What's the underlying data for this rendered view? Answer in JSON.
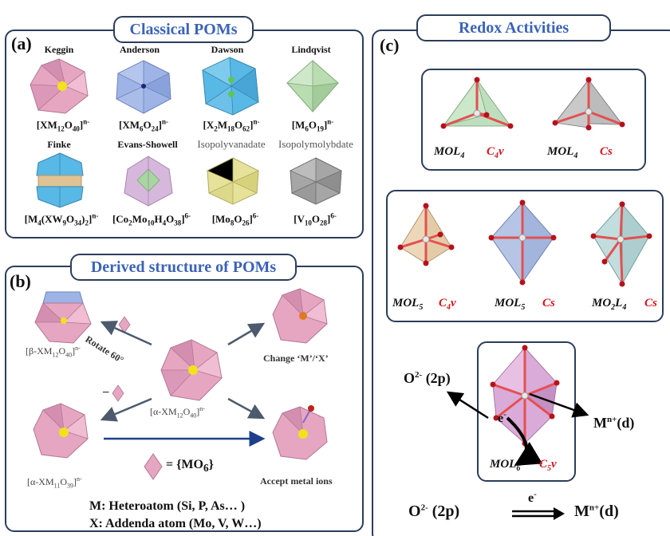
{
  "panel_a": {
    "label": "(a)",
    "title": "Classical POMs",
    "structures": [
      {
        "name": "Keggin",
        "formula_html": "[XM<sub>12</sub>O<sub>40</sub>]<sup>n-</sup>",
        "color": "#e6a6c2"
      },
      {
        "name": "Anderson",
        "formula_html": "[XM<sub>6</sub>O<sub>24</sub>]<sup>n-</sup>",
        "color": "#9eb3e6"
      },
      {
        "name": "Dawson",
        "formula_html": "[X<sub>2</sub>M<sub>18</sub>O<sub>62</sub>]<sup>n-</sup>",
        "color": "#58b8e6"
      },
      {
        "name": "Lindqvist",
        "formula_html": "[M<sub>6</sub>O<sub>19</sub>]<sup>n-</sup>",
        "color": "#b9dcb1"
      },
      {
        "name": "Finke",
        "formula_html": "[M<sub>4</sub>(XW<sub>9</sub>O<sub>34</sub>)<sub>2</sub>]<sup>n-</sup>",
        "color": "#58b8e6"
      },
      {
        "name": "Evans-Showell",
        "formula_html": "[Co<sub>2</sub>Mo<sub>10</sub>H<sub>4</sub>O<sub>38</sub>]<sup>6-</sup>",
        "color": "#d6b8dc"
      },
      {
        "name": "Isopolyvanadate",
        "formula_html": "[Mo<sub>8</sub>O<sub>26</sub>]<sup>6-</sup>",
        "color": "#e6e29a"
      },
      {
        "name": "Isopolymolybdate",
        "formula_html": "[V<sub>10</sub>O<sub>28</sub>]<sup>6-</sup>",
        "color": "#a6a6a6"
      }
    ]
  },
  "panel_b": {
    "label": "(b)",
    "title": "Derived structure of POMs",
    "center_formula_html": "[α-XM<sub>12</sub>O<sub>40</sub>]<sup>n-</sup>",
    "beta_formula_html": "[β-XM<sub>12</sub>O<sub>40</sub>]<sup>n-</sup>",
    "lacunary_formula_html": "[α-XM<sub>11</sub>O<sub>39</sub>]<sup>n-</sup>",
    "rotate_label": "Rotate 60°",
    "change_label": "Change ‘M’/‘X’",
    "accept_label": "Accept metal ions",
    "minus": "−",
    "mo6_label_html": "= {MO<sub>6</sub>}",
    "legend_m": "M: Heteroatom (Si, P, As… )",
    "legend_x": "X: Addenda atom (Mo, V, W…)"
  },
  "panel_c": {
    "label": "(c)",
    "title": "Redox Activities",
    "row1": [
      {
        "mol_html": "MOL<sub>4</sub>",
        "sym_html": "C<sub>4</sub>v",
        "color": "#b8dcb6"
      },
      {
        "mol_html": "MOL<sub>4</sub>",
        "sym_html": "Cs",
        "color": "#b5b5b5"
      }
    ],
    "row2": [
      {
        "mol_html": "MOL<sub>5</sub>",
        "sym_html": "C<sub>4</sub>v",
        "color": "#e3c9a4"
      },
      {
        "mol_html": "MOL<sub>5</sub>",
        "sym_html": "Cs",
        "color": "#9fb1dc"
      },
      {
        "mol_html": "MO<sub>2</sub>L<sub>4</sub>",
        "sym_html": "Cs",
        "color": "#a9cccc"
      }
    ],
    "row3": {
      "mol_html": "MOL<sub>6</sub>",
      "sym_html": "C<sub>5</sub>v",
      "color": "#d9a6d6"
    },
    "o_label_html": "O<sup>2-</sup> (2p)",
    "m_label_html": "M<sup>n+</sup>(d)",
    "electron_html": "e<sup>-</sup>",
    "bottom_o_html": "O<sup>2-</sup> (2p)",
    "bottom_m_html": "M<sup>n+</sup>(d)",
    "bottom_e_html": "e<sup>-</sup>"
  },
  "colors": {
    "frame": "#2c3d5a",
    "title_blue": "#3b63b8",
    "symmetry_red": "#d8121b",
    "oxygen_red": "#b5121b"
  }
}
